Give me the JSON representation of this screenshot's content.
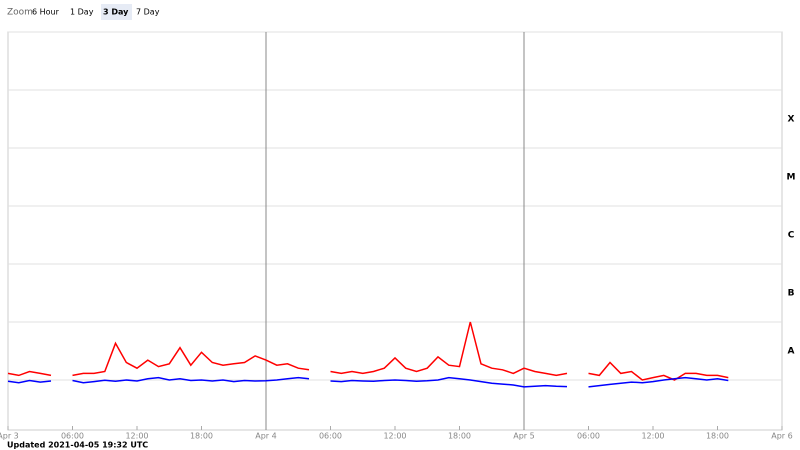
{
  "zoom": {
    "label": "Zoom",
    "options": [
      "6 Hour",
      "1 Day",
      "3 Day",
      "7 Day"
    ],
    "selected": 2
  },
  "footer": "Updated 2021-04-05 19:32 UTC",
  "chart_data": {
    "type": "line",
    "log_y": true,
    "grid": true,
    "xlim": [
      "2021-04-03T00:00",
      "2021-04-06T00:00"
    ],
    "xticks": [
      {
        "value": "2021-04-03T00:00",
        "label": "Apr 3"
      },
      {
        "value": "2021-04-03T06:00",
        "label": "06:00"
      },
      {
        "value": "2021-04-03T12:00",
        "label": "12:00"
      },
      {
        "value": "2021-04-03T18:00",
        "label": "18:00"
      },
      {
        "value": "2021-04-04T00:00",
        "label": "Apr 4"
      },
      {
        "value": "2021-04-04T06:00",
        "label": "06:00"
      },
      {
        "value": "2021-04-04T12:00",
        "label": "12:00"
      },
      {
        "value": "2021-04-04T18:00",
        "label": "18:00"
      },
      {
        "value": "2021-04-05T00:00",
        "label": "Apr 5"
      },
      {
        "value": "2021-04-05T06:00",
        "label": "06:00"
      },
      {
        "value": "2021-04-05T12:00",
        "label": "12:00"
      },
      {
        "value": "2021-04-05T18:00",
        "label": "18:00"
      },
      {
        "value": "2021-04-06T00:00",
        "label": "Apr 6"
      }
    ],
    "ylim": [
      1e-09,
      0.01
    ],
    "yticks": [
      1e-09,
      1e-08,
      1e-07,
      1e-06,
      1e-05,
      0.0001,
      0.001,
      0.01
    ],
    "class_labels": [
      {
        "value": 1e-08,
        "label": "A"
      },
      {
        "value": 1e-07,
        "label": "B"
      },
      {
        "value": 1e-06,
        "label": "C"
      },
      {
        "value": 1e-05,
        "label": "M"
      },
      {
        "value": 0.0001,
        "label": "X"
      }
    ],
    "x": [
      "2021-04-03T00:00",
      "2021-04-03T01:00",
      "2021-04-03T02:00",
      "2021-04-03T03:00",
      "2021-04-03T04:00",
      "2021-04-03T05:00",
      "2021-04-03T06:00",
      "2021-04-03T07:00",
      "2021-04-03T08:00",
      "2021-04-03T09:00",
      "2021-04-03T10:00",
      "2021-04-03T11:00",
      "2021-04-03T12:00",
      "2021-04-03T13:00",
      "2021-04-03T14:00",
      "2021-04-03T15:00",
      "2021-04-03T16:00",
      "2021-04-03T17:00",
      "2021-04-03T18:00",
      "2021-04-03T19:00",
      "2021-04-03T20:00",
      "2021-04-03T21:00",
      "2021-04-03T22:00",
      "2021-04-03T23:00",
      "2021-04-04T00:00",
      "2021-04-04T01:00",
      "2021-04-04T02:00",
      "2021-04-04T03:00",
      "2021-04-04T04:00",
      "2021-04-04T05:00",
      "2021-04-04T06:00",
      "2021-04-04T07:00",
      "2021-04-04T08:00",
      "2021-04-04T09:00",
      "2021-04-04T10:00",
      "2021-04-04T11:00",
      "2021-04-04T12:00",
      "2021-04-04T13:00",
      "2021-04-04T14:00",
      "2021-04-04T15:00",
      "2021-04-04T16:00",
      "2021-04-04T17:00",
      "2021-04-04T18:00",
      "2021-04-04T19:00",
      "2021-04-04T20:00",
      "2021-04-04T21:00",
      "2021-04-04T22:00",
      "2021-04-04T23:00",
      "2021-04-05T00:00",
      "2021-04-05T01:00",
      "2021-04-05T02:00",
      "2021-04-05T03:00",
      "2021-04-05T04:00",
      "2021-04-05T05:00",
      "2021-04-05T06:00",
      "2021-04-05T07:00",
      "2021-04-05T08:00",
      "2021-04-05T09:00",
      "2021-04-05T10:00",
      "2021-04-05T11:00",
      "2021-04-05T12:00",
      "2021-04-05T13:00",
      "2021-04-05T14:00",
      "2021-04-05T15:00",
      "2021-04-05T16:00",
      "2021-04-05T17:00",
      "2021-04-05T18:00",
      "2021-04-05T19:00"
    ],
    "series": [
      {
        "color": "#ff0000",
        "values": [
          1.3e-08,
          1.2e-08,
          1.4e-08,
          1.3e-08,
          1.2e-08,
          null,
          1.2e-08,
          1.3e-08,
          1.3e-08,
          1.4e-08,
          4.3e-08,
          2e-08,
          1.6e-08,
          2.2e-08,
          1.7e-08,
          1.9e-08,
          3.6e-08,
          1.8e-08,
          3e-08,
          2e-08,
          1.8e-08,
          1.9e-08,
          2e-08,
          2.6e-08,
          2.2e-08,
          1.8e-08,
          1.9e-08,
          1.6e-08,
          1.5e-08,
          null,
          1.4e-08,
          1.3e-08,
          1.4e-08,
          1.3e-08,
          1.4e-08,
          1.6e-08,
          2.4e-08,
          1.6e-08,
          1.4e-08,
          1.6e-08,
          2.5e-08,
          1.8e-08,
          1.7e-08,
          1e-07,
          1.9e-08,
          1.6e-08,
          1.5e-08,
          1.3e-08,
          1.6e-08,
          1.4e-08,
          1.3e-08,
          1.2e-08,
          1.3e-08,
          null,
          1.3e-08,
          1.2e-08,
          2e-08,
          1.3e-08,
          1.4e-08,
          1e-08,
          1.1e-08,
          1.2e-08,
          1e-08,
          1.3e-08,
          1.3e-08,
          1.2e-08,
          1.2e-08,
          1.1e-08
        ]
      },
      {
        "color": "#0000ff",
        "values": [
          9.5e-09,
          9e-09,
          9.8e-09,
          9.2e-09,
          9.6e-09,
          null,
          9.8e-09,
          9e-09,
          9.4e-09,
          9.9e-09,
          9.5e-09,
          1e-08,
          9.6e-09,
          1.05e-08,
          1.1e-08,
          1e-08,
          1.05e-08,
          9.8e-09,
          1e-08,
          9.6e-09,
          1e-08,
          9.4e-09,
          9.8e-09,
          9.6e-09,
          9.7e-09,
          1e-08,
          1.05e-08,
          1.1e-08,
          1.05e-08,
          null,
          9.6e-09,
          9.4e-09,
          9.8e-09,
          9.6e-09,
          9.5e-09,
          9.8e-09,
          1e-08,
          9.8e-09,
          9.5e-09,
          9.7e-09,
          1e-08,
          1.1e-08,
          1.05e-08,
          1e-08,
          9.4e-09,
          8.8e-09,
          8.5e-09,
          8.2e-09,
          7.6e-09,
          7.8e-09,
          8e-09,
          7.8e-09,
          7.7e-09,
          null,
          7.6e-09,
          8e-09,
          8.4e-09,
          8.8e-09,
          9.2e-09,
          9e-09,
          9.4e-09,
          1e-08,
          1.05e-08,
          1.1e-08,
          1.05e-08,
          1e-08,
          1.05e-08,
          9.8e-09
        ]
      }
    ]
  }
}
